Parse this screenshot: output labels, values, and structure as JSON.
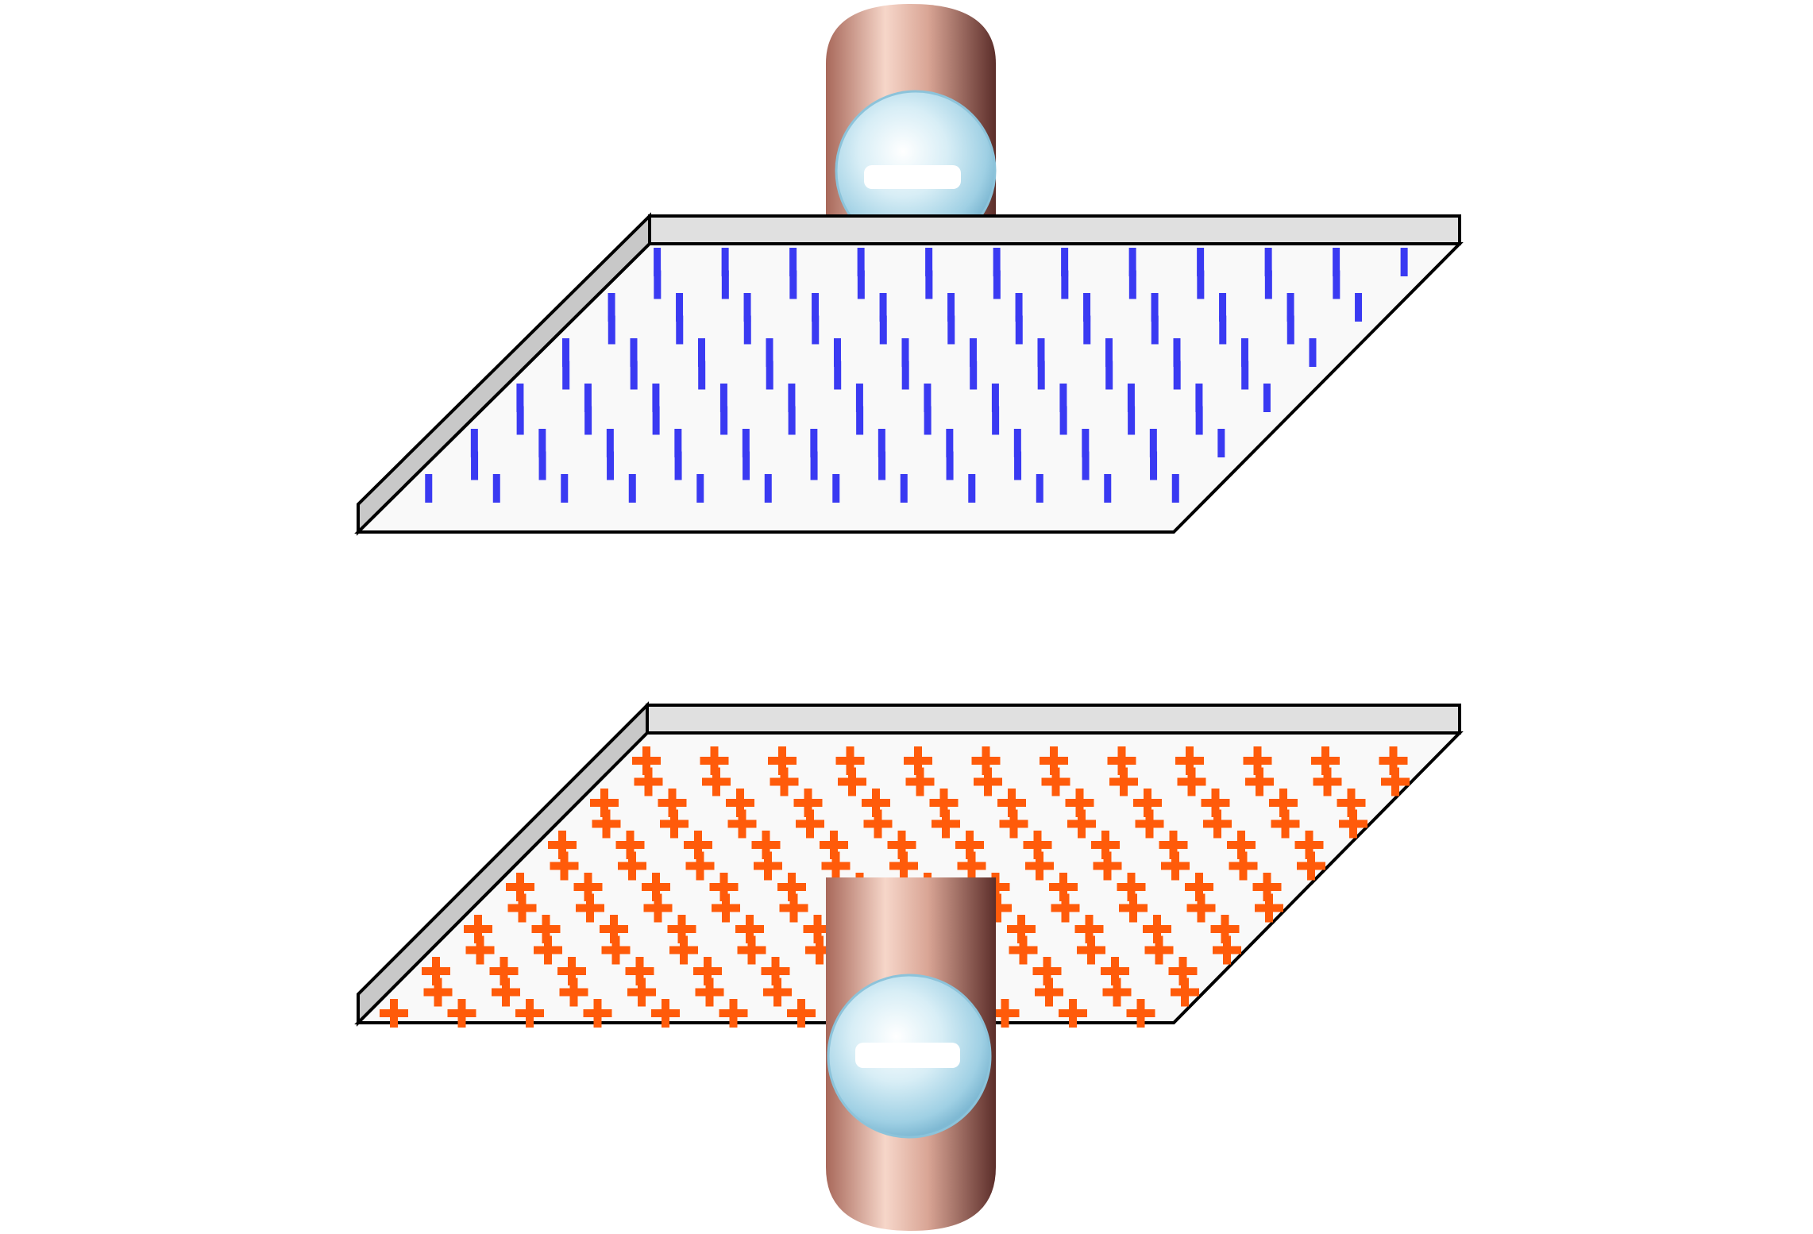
{
  "diagram": {
    "kind": "parallel-plate-capacitor",
    "background": "#ffffff",
    "plate_face_color": "#f9f9f9",
    "plate_edge_color": "#e0e0e0",
    "plate_side_color": "#c8c8c8",
    "outline_color": "#000000",
    "top_plate": {
      "charge": "negative",
      "mark": "−",
      "mark_color": "#3a3af2"
    },
    "bottom_plate": {
      "charge": "positive",
      "mark": "+",
      "mark_color": "#ff5b0a"
    },
    "wires": [
      {
        "connects": "top_plate",
        "color": "#c98f7e",
        "electron": {
          "charge": "negative",
          "color": "#9fd6ea"
        }
      },
      {
        "connects": "bottom_plate",
        "color": "#c98f7e",
        "electron": {
          "charge": "negative",
          "color": "#9fd6ea"
        }
      }
    ]
  }
}
